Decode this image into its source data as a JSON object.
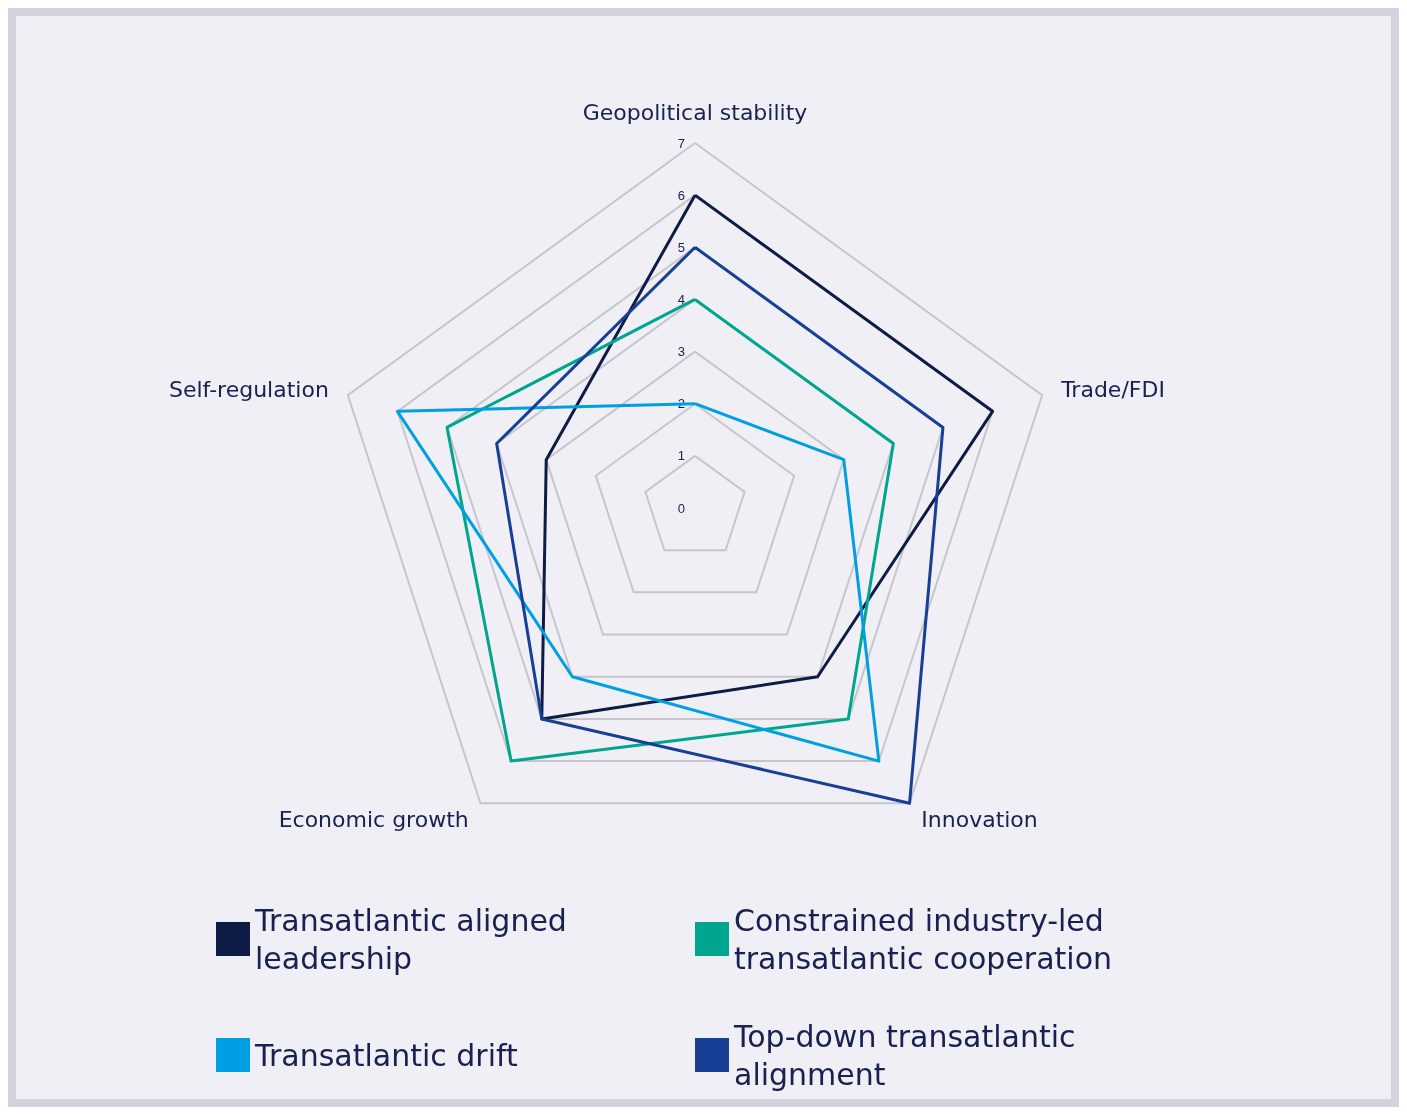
{
  "chart_data": {
    "type": "radar",
    "categories": [
      "Geopolitical stability",
      "Trade/FDI",
      "Innovation",
      "Economic growth",
      "Self-regulation"
    ],
    "ylim": [
      0,
      7
    ],
    "yticks": [
      0,
      1,
      2,
      3,
      4,
      5,
      6,
      7
    ],
    "grid": true,
    "legend": "bottom",
    "marker": "none",
    "series": [
      {
        "name": "Transatlantic aligned leadership",
        "color": "#0d1b45",
        "values": [
          6,
          6,
          4,
          5,
          3
        ]
      },
      {
        "name": "Constrained industry-led transatlantic cooperation",
        "color": "#00a58e",
        "values": [
          4,
          4,
          5,
          6,
          5
        ]
      },
      {
        "name": "Transatlantic drift",
        "color": "#009fe3",
        "values": [
          2,
          3,
          6,
          4,
          6
        ]
      },
      {
        "name": "Top-down transatlantic alignment",
        "color": "#173f96",
        "values": [
          5,
          5,
          7,
          5,
          4
        ]
      }
    ]
  }
}
